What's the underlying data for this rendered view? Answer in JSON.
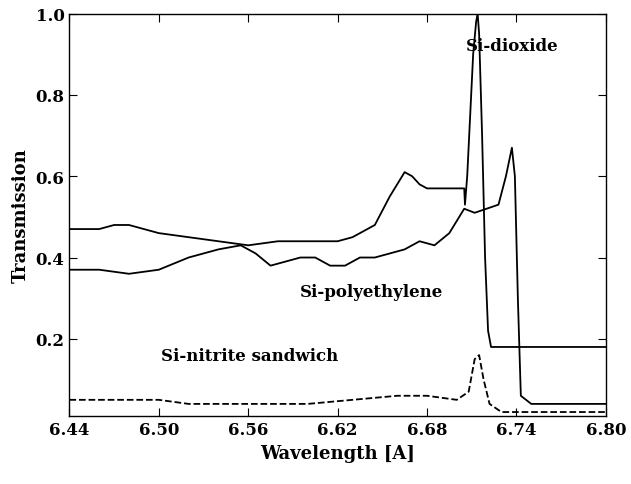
{
  "chart_data": {
    "type": "line",
    "x_label": "Wavelength [A]",
    "y_label": "Transmission",
    "xlim": [
      6.44,
      6.8
    ],
    "xticks": [
      6.44,
      {
        "value": 6.5,
        "label": "6.50"
      },
      6.56,
      6.62,
      6.68,
      6.74,
      {
        "value": 6.8,
        "label": "6.80"
      }
    ],
    "ylim": [
      0.01,
      1.0
    ],
    "yticks": [
      0.2,
      0.4,
      0.6,
      0.8,
      {
        "value": 1.0,
        "label": "1.0"
      }
    ],
    "grid": false,
    "series": [
      {
        "name": "Si-dioxide",
        "color": "#000000",
        "line_style": "solid",
        "x": [
          6.44,
          6.46,
          6.47,
          6.48,
          6.49,
          6.5,
          6.52,
          6.54,
          6.56,
          6.58,
          6.6,
          6.62,
          6.63,
          6.645,
          6.655,
          6.665,
          6.67,
          6.675,
          6.68,
          6.69,
          6.7,
          6.705,
          6.7055,
          6.707,
          6.709,
          6.711,
          6.713,
          6.714,
          6.715,
          6.717,
          6.719,
          6.721,
          6.723,
          6.8
        ],
        "values": [
          0.47,
          0.47,
          0.48,
          0.48,
          0.47,
          0.46,
          0.45,
          0.44,
          0.43,
          0.44,
          0.44,
          0.44,
          0.45,
          0.48,
          0.55,
          0.61,
          0.6,
          0.58,
          0.57,
          0.57,
          0.57,
          0.57,
          0.53,
          0.6,
          0.75,
          0.9,
          0.98,
          1.0,
          0.95,
          0.7,
          0.4,
          0.22,
          0.18,
          0.18
        ]
      },
      {
        "name": "Si-polyethylene",
        "color": "#000000",
        "line_style": "solid",
        "x": [
          6.44,
          6.46,
          6.48,
          6.5,
          6.52,
          6.54,
          6.555,
          6.565,
          6.575,
          6.585,
          6.595,
          6.605,
          6.615,
          6.625,
          6.635,
          6.645,
          6.655,
          6.665,
          6.675,
          6.685,
          6.695,
          6.705,
          6.712,
          6.72,
          6.728,
          6.733,
          6.737,
          6.739,
          6.741,
          6.743,
          6.75,
          6.8
        ],
        "values": [
          0.37,
          0.37,
          0.36,
          0.37,
          0.4,
          0.42,
          0.43,
          0.41,
          0.38,
          0.39,
          0.4,
          0.4,
          0.38,
          0.38,
          0.4,
          0.4,
          0.41,
          0.42,
          0.44,
          0.43,
          0.46,
          0.52,
          0.51,
          0.52,
          0.53,
          0.6,
          0.67,
          0.6,
          0.3,
          0.06,
          0.04,
          0.04
        ]
      },
      {
        "name": "Si-nitrite sandwich",
        "color": "#000000",
        "line_style": "dashed",
        "x": [
          6.44,
          6.48,
          6.5,
          6.52,
          6.56,
          6.6,
          6.63,
          6.66,
          6.68,
          6.7,
          6.708,
          6.712,
          6.715,
          6.718,
          6.722,
          6.73,
          6.8
        ],
        "values": [
          0.05,
          0.05,
          0.05,
          0.04,
          0.04,
          0.04,
          0.05,
          0.06,
          0.06,
          0.05,
          0.07,
          0.15,
          0.16,
          0.1,
          0.04,
          0.02,
          0.02
        ]
      }
    ]
  }
}
